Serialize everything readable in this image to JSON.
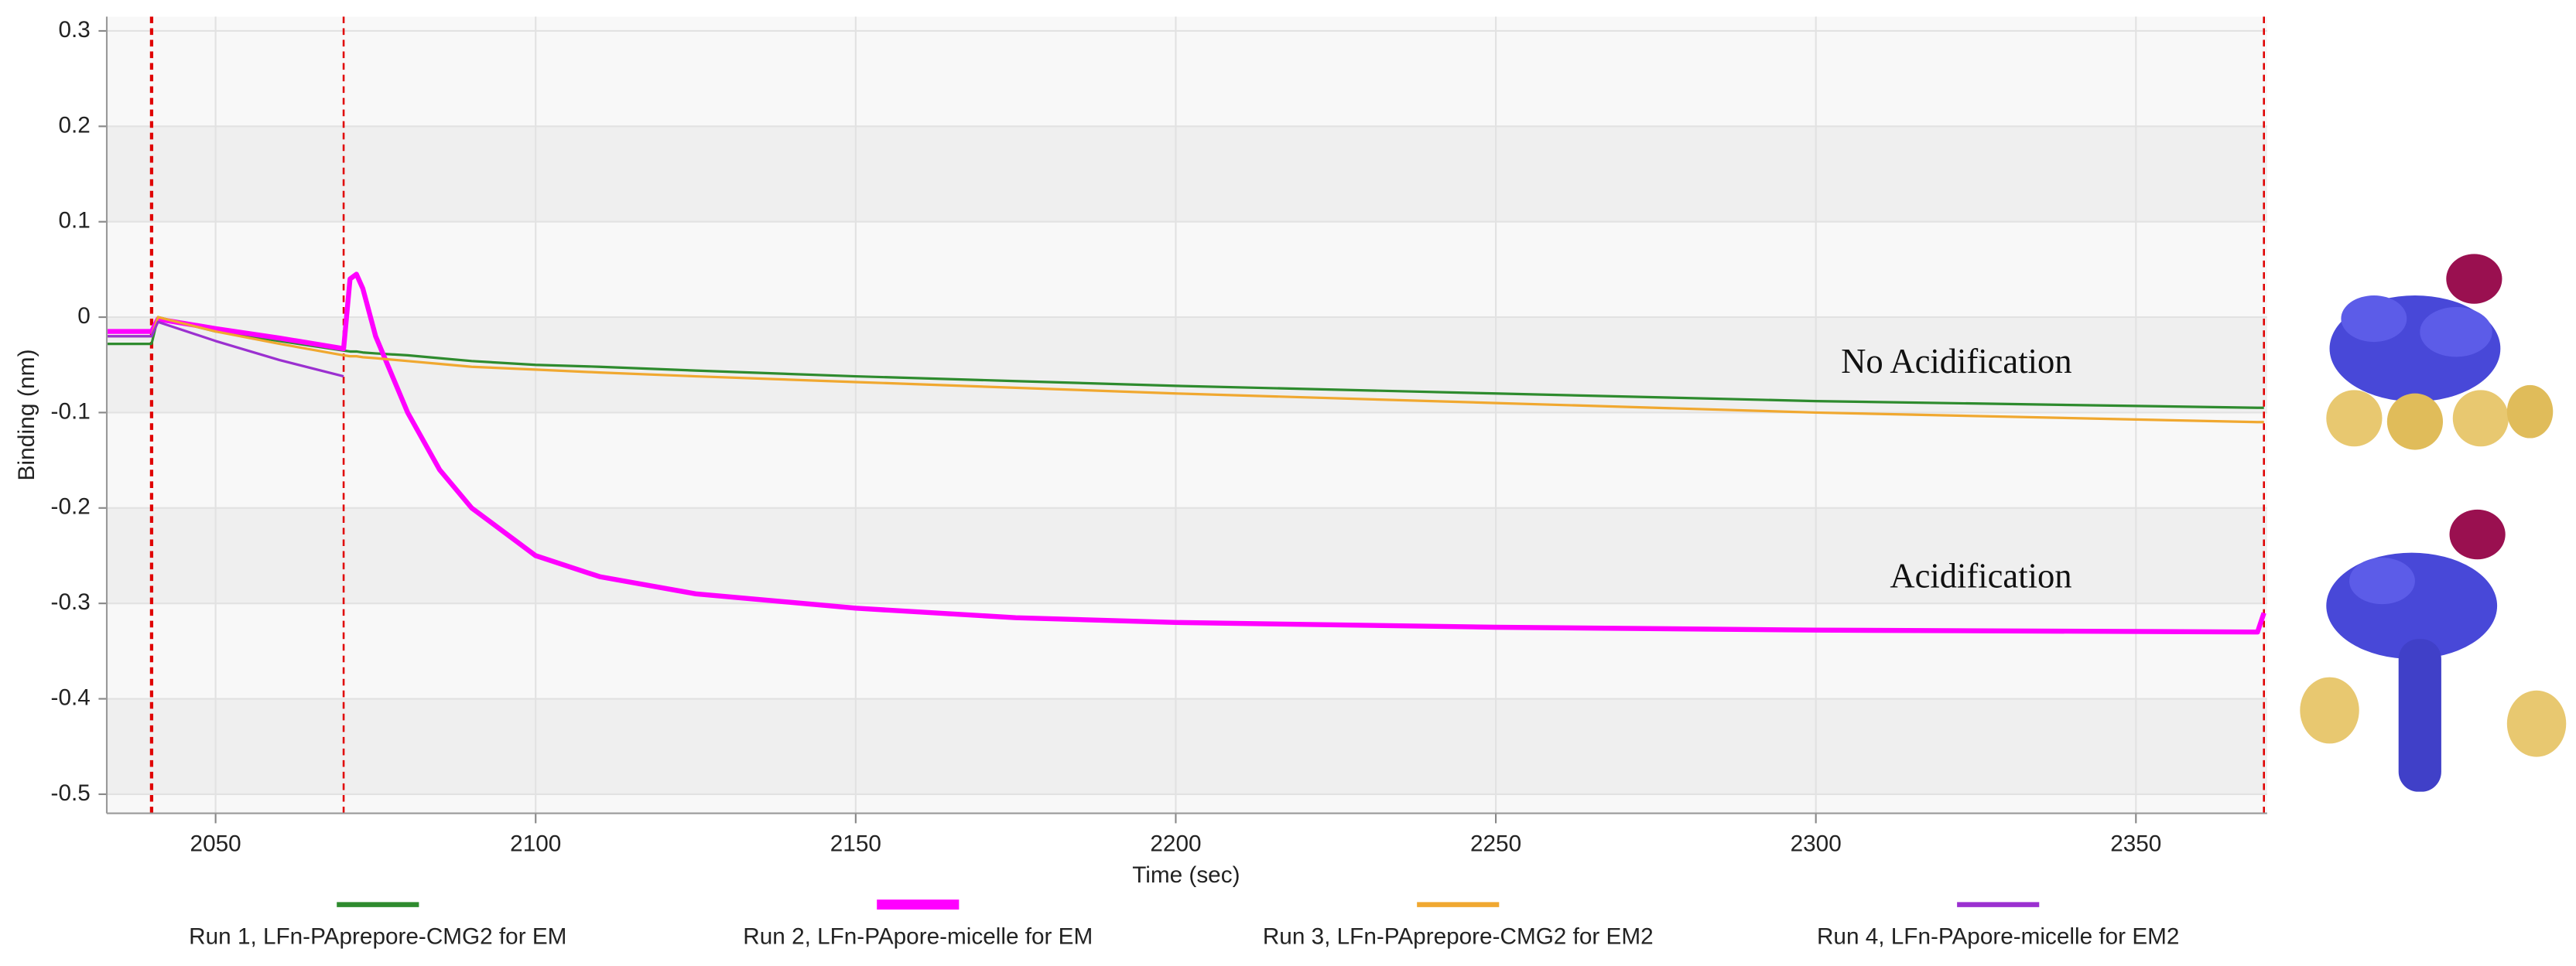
{
  "chart_data": {
    "type": "line",
    "x_label": "Time (sec)",
    "y_label": "Binding (nm)",
    "x": [
      2033,
      2040,
      2041,
      2050,
      2060,
      2070,
      2071,
      2072,
      2073,
      2075,
      2080,
      2085,
      2090,
      2100,
      2110,
      2125,
      2150,
      2175,
      2200,
      2250,
      2300,
      2369,
      2370
    ],
    "series": [
      {
        "name": "Run 1, LFn-PAprepore-CMG2 for EM",
        "color": "#2e8b2e",
        "width": 1.5,
        "values": [
          -0.028,
          -0.028,
          0,
          -0.015,
          -0.025,
          -0.035,
          -0.036,
          -0.036,
          -0.037,
          -0.038,
          -0.04,
          -0.043,
          -0.046,
          -0.05,
          -0.052,
          -0.056,
          -0.062,
          -0.067,
          -0.072,
          -0.08,
          -0.088,
          -0.095,
          -0.095
        ]
      },
      {
        "name": "Run 2, LFn-PApore-micelle for EM",
        "color": "#ff00ff",
        "width": 3,
        "values": [
          -0.015,
          -0.015,
          -0.002,
          -0.012,
          -0.022,
          -0.033,
          0.04,
          0.045,
          0.03,
          -0.02,
          -0.1,
          -0.16,
          -0.2,
          -0.25,
          -0.272,
          -0.29,
          -0.305,
          -0.315,
          -0.32,
          -0.325,
          -0.328,
          -0.33,
          -0.31
        ]
      },
      {
        "name": "Run 3, LFn-PAprepore-CMG2 for EM2",
        "color": "#f0a830",
        "width": 1.5,
        "values": [
          -0.02,
          -0.02,
          0,
          -0.015,
          -0.028,
          -0.04,
          -0.041,
          -0.041,
          -0.042,
          -0.043,
          -0.046,
          -0.049,
          -0.052,
          -0.055,
          -0.058,
          -0.062,
          -0.068,
          -0.074,
          -0.08,
          -0.09,
          -0.1,
          -0.11,
          -0.11
        ]
      },
      {
        "name": "Run 4, LFn-PApore-micelle for EM2",
        "color": "#9b30d0",
        "width": 1.5,
        "values": [
          -0.02,
          -0.02,
          -0.005,
          -0.025,
          -0.045,
          -0.062,
          null,
          null,
          null,
          null,
          null,
          null,
          null,
          null,
          null,
          null,
          null,
          null,
          null,
          null,
          null,
          null,
          null
        ]
      }
    ],
    "xlim": [
      2033,
      2370.5
    ],
    "ylim": [
      -0.52,
      0.315
    ],
    "xticks": [
      2050,
      2100,
      2150,
      2200,
      2250,
      2300,
      2350
    ],
    "yticks": [
      0.3,
      0.2,
      0.1,
      0,
      -0.1,
      -0.2,
      -0.3,
      -0.4,
      -0.5
    ],
    "grid": true,
    "vlines": {
      "x": [
        2040,
        2070,
        2370
      ],
      "color": "#e00000"
    },
    "annotations": [
      {
        "text": "No Acidification",
        "x": 2340,
        "y": -0.05
      },
      {
        "text": "Acidification",
        "x": 2340,
        "y": -0.275
      }
    ],
    "legend": "bottom"
  }
}
